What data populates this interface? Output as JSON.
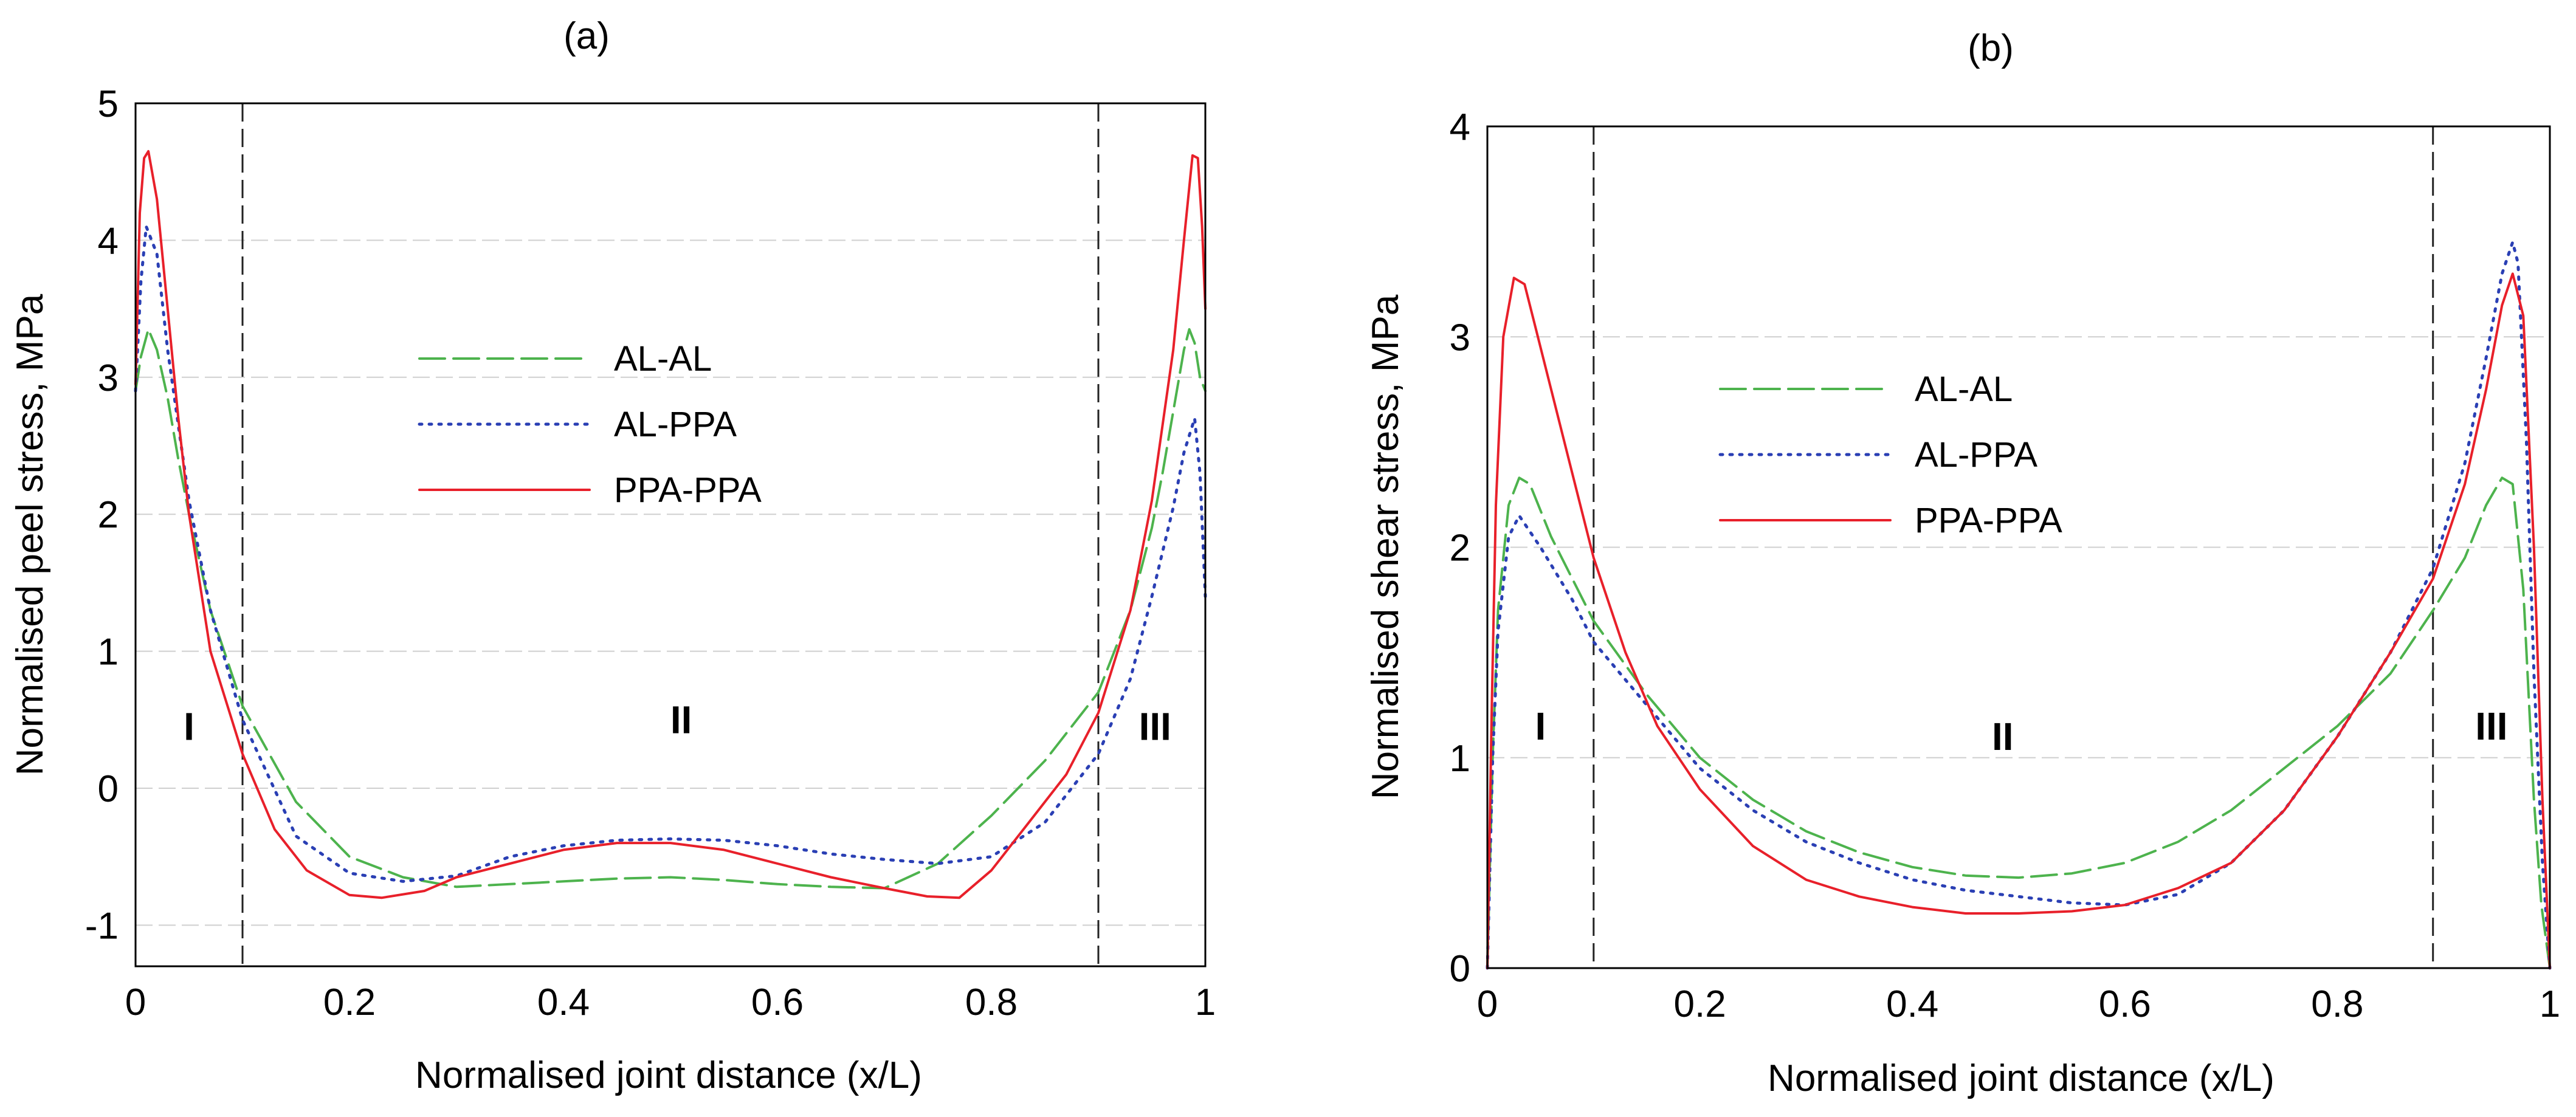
{
  "chart_data": [
    {
      "type": "line",
      "panel_label": "(a)",
      "xlabel": "Normalised joint distance (x/L)",
      "ylabel": "Normalised peel stress, MPa",
      "xlim": [
        0,
        1
      ],
      "ylim": [
        -1.3,
        5
      ],
      "x_ticks": [
        {
          "value": 0,
          "label": "0"
        },
        {
          "value": 0.2,
          "label": "0.2"
        },
        {
          "value": 0.4,
          "label": "0.4"
        },
        {
          "value": 0.6,
          "label": "0.6"
        },
        {
          "value": 0.8,
          "label": "0.8"
        },
        {
          "value": 1,
          "label": "1"
        }
      ],
      "y_ticks": [
        {
          "value": -1,
          "label": "-1"
        },
        {
          "value": 0,
          "label": "0"
        },
        {
          "value": 1,
          "label": "1"
        },
        {
          "value": 2,
          "label": "2"
        },
        {
          "value": 3,
          "label": "3"
        },
        {
          "value": 4,
          "label": "4"
        },
        {
          "value": 5,
          "label": "5"
        }
      ],
      "grid": "horizontal",
      "legend_position": "upper-center",
      "region_boundaries": [
        0.1,
        0.9
      ],
      "region_labels": [
        {
          "x": 0.05,
          "y": 0.45,
          "text": "I"
        },
        {
          "x": 0.51,
          "y": 0.5,
          "text": "II"
        },
        {
          "x": 0.953,
          "y": 0.45,
          "text": "III"
        }
      ],
      "series": [
        {
          "name": "AL-AL",
          "color": "#4db34d",
          "dash": "long-dash",
          "x": [
            0,
            0.005,
            0.012,
            0.02,
            0.03,
            0.04,
            0.05,
            0.07,
            0.1,
            0.15,
            0.2,
            0.25,
            0.3,
            0.35,
            0.4,
            0.45,
            0.5,
            0.55,
            0.6,
            0.65,
            0.7,
            0.75,
            0.8,
            0.85,
            0.9,
            0.93,
            0.95,
            0.96,
            0.97,
            0.98,
            0.985,
            0.99,
            0.995,
            1
          ],
          "y": [
            2.9,
            3.15,
            3.35,
            3.2,
            2.85,
            2.4,
            2.0,
            1.3,
            0.6,
            -0.1,
            -0.5,
            -0.65,
            -0.72,
            -0.7,
            -0.68,
            -0.66,
            -0.65,
            -0.67,
            -0.7,
            -0.72,
            -0.73,
            -0.55,
            -0.2,
            0.2,
            0.7,
            1.3,
            1.9,
            2.3,
            2.75,
            3.2,
            3.35,
            3.25,
            3.0,
            2.9
          ]
        },
        {
          "name": "AL-PPA",
          "color": "#2a3fb4",
          "dash": "dotted",
          "x": [
            0,
            0.005,
            0.01,
            0.02,
            0.03,
            0.05,
            0.07,
            0.1,
            0.15,
            0.2,
            0.25,
            0.3,
            0.35,
            0.4,
            0.45,
            0.5,
            0.55,
            0.6,
            0.65,
            0.7,
            0.75,
            0.8,
            0.85,
            0.9,
            0.93,
            0.95,
            0.97,
            0.98,
            0.99,
            0.995,
            1
          ],
          "y": [
            2.9,
            3.7,
            4.1,
            3.9,
            3.2,
            2.1,
            1.3,
            0.5,
            -0.35,
            -0.62,
            -0.68,
            -0.64,
            -0.5,
            -0.42,
            -0.38,
            -0.37,
            -0.38,
            -0.42,
            -0.48,
            -0.52,
            -0.55,
            -0.5,
            -0.25,
            0.25,
            0.8,
            1.4,
            2.05,
            2.45,
            2.7,
            2.3,
            1.4
          ]
        },
        {
          "name": "PPA-PPA",
          "color": "#e8202a",
          "dash": "solid",
          "x": [
            0,
            0.004,
            0.008,
            0.012,
            0.02,
            0.03,
            0.04,
            0.05,
            0.07,
            0.1,
            0.13,
            0.16,
            0.2,
            0.23,
            0.27,
            0.3,
            0.35,
            0.4,
            0.45,
            0.5,
            0.55,
            0.6,
            0.65,
            0.7,
            0.74,
            0.77,
            0.8,
            0.84,
            0.87,
            0.9,
            0.93,
            0.95,
            0.97,
            0.98,
            0.988,
            0.993,
            0.997,
            1
          ],
          "y": [
            2.95,
            4.2,
            4.6,
            4.65,
            4.3,
            3.5,
            2.7,
            2.0,
            1.0,
            0.25,
            -0.3,
            -0.6,
            -0.78,
            -0.8,
            -0.75,
            -0.65,
            -0.55,
            -0.45,
            -0.4,
            -0.4,
            -0.45,
            -0.55,
            -0.65,
            -0.73,
            -0.79,
            -0.8,
            -0.6,
            -0.2,
            0.1,
            0.55,
            1.3,
            2.1,
            3.2,
            4.0,
            4.62,
            4.6,
            4.1,
            3.5
          ]
        }
      ]
    },
    {
      "type": "line",
      "panel_label": "(b)",
      "xlabel": "Normalised joint distance (x/L)",
      "ylabel": "Normalised shear stress, MPa",
      "xlim": [
        0,
        1
      ],
      "ylim": [
        0,
        4
      ],
      "x_ticks": [
        {
          "value": 0,
          "label": "0"
        },
        {
          "value": 0.2,
          "label": "0.2"
        },
        {
          "value": 0.4,
          "label": "0.4"
        },
        {
          "value": 0.6,
          "label": "0.6"
        },
        {
          "value": 0.8,
          "label": "0.8"
        },
        {
          "value": 1,
          "label": "1"
        }
      ],
      "y_ticks": [
        {
          "value": 0,
          "label": "0"
        },
        {
          "value": 1,
          "label": "1"
        },
        {
          "value": 2,
          "label": "2"
        },
        {
          "value": 3,
          "label": "3"
        },
        {
          "value": 4,
          "label": "4"
        }
      ],
      "grid": "horizontal",
      "legend_position": "upper-center",
      "region_boundaries": [
        0.1,
        0.89
      ],
      "region_labels": [
        {
          "x": 0.05,
          "y": 1.15,
          "text": "I"
        },
        {
          "x": 0.485,
          "y": 1.1,
          "text": "II"
        },
        {
          "x": 0.945,
          "y": 1.15,
          "text": "III"
        }
      ],
      "series": [
        {
          "name": "AL-AL",
          "color": "#4db34d",
          "dash": "long-dash",
          "x": [
            0,
            0.005,
            0.01,
            0.02,
            0.03,
            0.04,
            0.06,
            0.08,
            0.1,
            0.15,
            0.2,
            0.25,
            0.3,
            0.35,
            0.4,
            0.45,
            0.5,
            0.55,
            0.6,
            0.65,
            0.7,
            0.75,
            0.8,
            0.85,
            0.89,
            0.92,
            0.94,
            0.955,
            0.965,
            0.975,
            0.985,
            0.992,
            1
          ],
          "y": [
            0,
            1.0,
            1.7,
            2.2,
            2.33,
            2.3,
            2.05,
            1.85,
            1.65,
            1.3,
            1.0,
            0.8,
            0.65,
            0.55,
            0.48,
            0.44,
            0.43,
            0.45,
            0.5,
            0.6,
            0.75,
            0.95,
            1.15,
            1.4,
            1.7,
            1.95,
            2.2,
            2.33,
            2.3,
            1.8,
            0.8,
            0.3,
            0
          ]
        },
        {
          "name": "AL-PPA",
          "color": "#2a3fb4",
          "dash": "dotted",
          "x": [
            0,
            0.005,
            0.01,
            0.02,
            0.03,
            0.05,
            0.08,
            0.1,
            0.15,
            0.2,
            0.25,
            0.3,
            0.35,
            0.4,
            0.45,
            0.5,
            0.55,
            0.6,
            0.65,
            0.7,
            0.75,
            0.8,
            0.85,
            0.89,
            0.92,
            0.94,
            0.955,
            0.965,
            0.97,
            0.978,
            0.985,
            0.993,
            1
          ],
          "y": [
            0,
            1.0,
            1.6,
            2.05,
            2.15,
            2.0,
            1.75,
            1.55,
            1.25,
            0.95,
            0.75,
            0.6,
            0.5,
            0.42,
            0.37,
            0.34,
            0.31,
            0.3,
            0.35,
            0.5,
            0.75,
            1.1,
            1.5,
            1.9,
            2.4,
            2.9,
            3.3,
            3.45,
            3.35,
            2.5,
            1.4,
            0.5,
            0
          ]
        },
        {
          "name": "PPA-PPA",
          "color": "#e8202a",
          "dash": "solid",
          "x": [
            0,
            0.004,
            0.008,
            0.015,
            0.025,
            0.035,
            0.045,
            0.06,
            0.08,
            0.1,
            0.13,
            0.16,
            0.2,
            0.25,
            0.3,
            0.35,
            0.4,
            0.45,
            0.5,
            0.55,
            0.6,
            0.65,
            0.7,
            0.75,
            0.8,
            0.85,
            0.89,
            0.92,
            0.94,
            0.955,
            0.965,
            0.975,
            0.985,
            0.993,
            1
          ],
          "y": [
            0,
            1.2,
            2.2,
            3.0,
            3.28,
            3.25,
            3.05,
            2.75,
            2.35,
            1.95,
            1.5,
            1.15,
            0.85,
            0.58,
            0.42,
            0.34,
            0.29,
            0.26,
            0.26,
            0.27,
            0.3,
            0.38,
            0.5,
            0.75,
            1.1,
            1.5,
            1.85,
            2.3,
            2.75,
            3.15,
            3.3,
            3.1,
            2.0,
            0.8,
            0
          ]
        }
      ]
    }
  ]
}
